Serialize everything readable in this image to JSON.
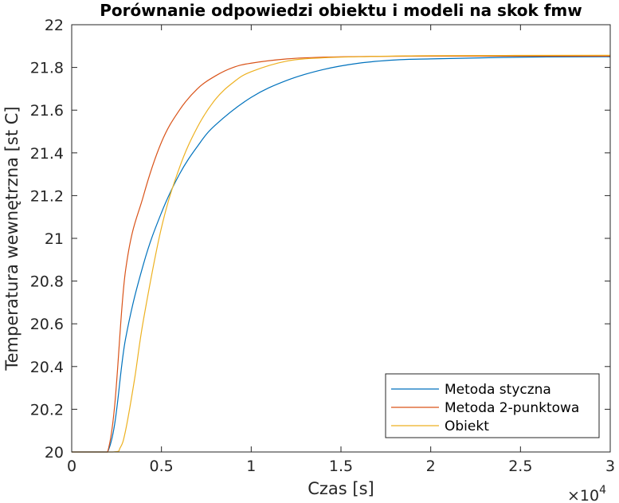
{
  "chart_data": {
    "type": "line",
    "title": "Porównanie odpowiedzi obiektu i modeli na skok fmw",
    "xlabel": "Czas [s]",
    "ylabel": "Temperatura wewnętrzna [st C]",
    "x_exponent_label": "×10",
    "x_exponent_power": "4",
    "xlim": [
      0,
      3
    ],
    "ylim": [
      20,
      22
    ],
    "x_ticks": [
      0,
      0.5,
      1,
      1.5,
      2,
      2.5,
      3
    ],
    "x_tick_labels": [
      "0",
      "0.5",
      "1",
      "1.5",
      "2",
      "2.5",
      "3"
    ],
    "y_ticks": [
      20,
      20.2,
      20.4,
      20.6,
      20.8,
      21,
      21.2,
      21.4,
      21.6,
      21.8,
      22
    ],
    "y_tick_labels": [
      "20",
      "20.2",
      "20.4",
      "20.6",
      "20.8",
      "21",
      "21.2",
      "21.4",
      "21.6",
      "21.8",
      "22"
    ],
    "grid": false,
    "legend_position": "bottom-right",
    "series": [
      {
        "name": "Metoda styczna",
        "color": "#0072BD",
        "x": [
          0,
          0.2,
          0.3,
          0.4,
          0.5,
          0.6,
          0.7,
          0.8,
          1.0,
          1.2,
          1.4,
          1.6,
          1.8,
          2.0,
          2.5,
          3.0
        ],
        "y": [
          20,
          20,
          20.53,
          20.88,
          21.12,
          21.3,
          21.43,
          21.53,
          21.66,
          21.74,
          21.79,
          21.82,
          21.835,
          21.84,
          21.848,
          21.85
        ]
      },
      {
        "name": "Metoda 2-punktowa",
        "color": "#D95319",
        "x": [
          0,
          0.2,
          0.3,
          0.4,
          0.5,
          0.6,
          0.7,
          0.8,
          0.9,
          1.0,
          1.2,
          1.4,
          1.6,
          2.0,
          3.0
        ],
        "y": [
          20,
          20,
          20.85,
          21.2,
          21.45,
          21.6,
          21.7,
          21.76,
          21.8,
          21.82,
          21.84,
          21.848,
          21.851,
          21.853,
          21.853
        ]
      },
      {
        "name": "Obiekt",
        "color": "#EDB120",
        "x": [
          0,
          0.23,
          0.27,
          0.3,
          0.35,
          0.4,
          0.5,
          0.6,
          0.7,
          0.8,
          0.9,
          1.0,
          1.2,
          1.4,
          1.6,
          2.0,
          3.0
        ],
        "y": [
          20,
          20,
          20.02,
          20.1,
          20.34,
          20.62,
          21.05,
          21.33,
          21.52,
          21.65,
          21.73,
          21.78,
          21.83,
          21.845,
          21.85,
          21.855,
          21.857
        ]
      }
    ]
  }
}
